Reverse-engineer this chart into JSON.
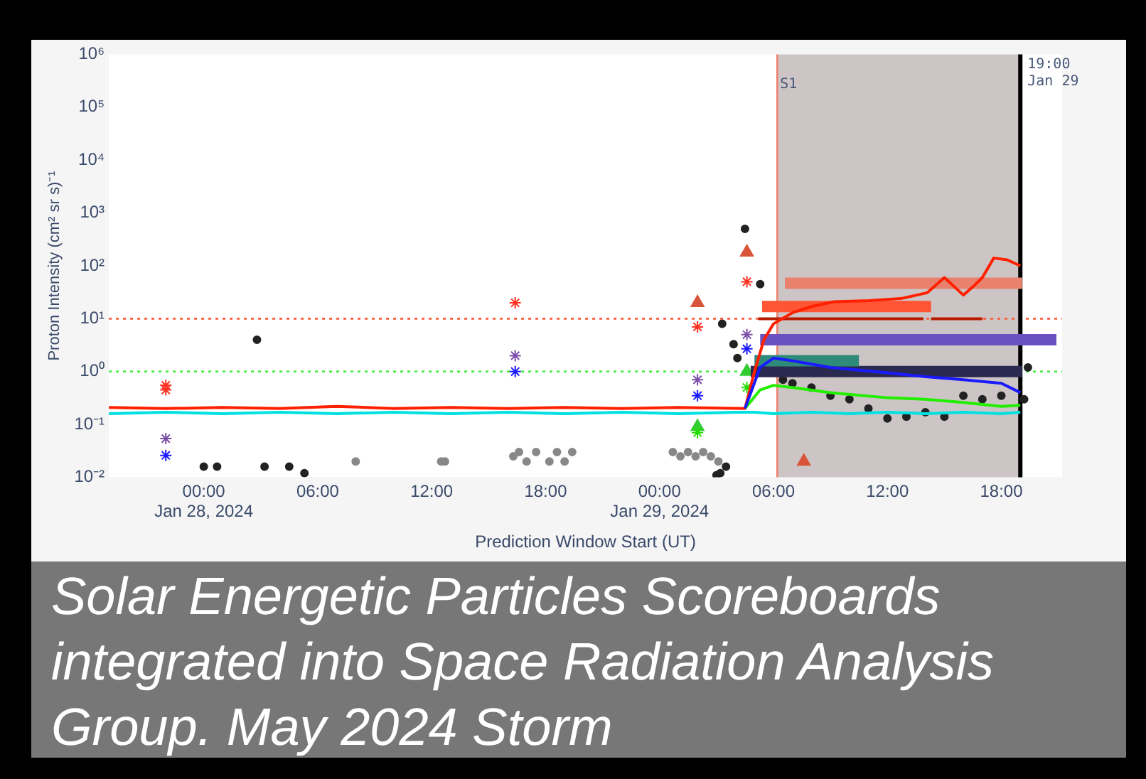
{
  "chart_data": {
    "type": "line",
    "title": "Solar Energetic Particles Scoreboards integrated into Space Radiation Analysis Group. May 2024 Storm",
    "xlabel": "Prediction Window Start (UT)",
    "ylabel": "Proton Intensity (cm² sr s)⁻¹",
    "log": "y",
    "grid": false,
    "legend": false,
    "xlim": [
      "2024-01-27T19:00",
      "2024-01-29T21:12"
    ],
    "xticks": [
      {
        "value": "2024-01-28T00:00",
        "label": "00:00\nJan 28, 2024"
      },
      {
        "value": "2024-01-28T06:00",
        "label": "06:00"
      },
      {
        "value": "2024-01-28T12:00",
        "label": "12:00"
      },
      {
        "value": "2024-01-28T18:00",
        "label": "18:00"
      },
      {
        "value": "2024-01-29T00:00",
        "label": "00:00\nJan 29, 2024"
      },
      {
        "value": "2024-01-29T06:00",
        "label": "06:00"
      },
      {
        "value": "2024-01-29T12:00",
        "label": "12:00"
      },
      {
        "value": "2024-01-29T18:00",
        "label": "18:00"
      }
    ],
    "ylim": [
      0.01,
      1000000
    ],
    "yticks": [
      {
        "value": 0.01,
        "label": "10⁻²"
      },
      {
        "value": 0.1,
        "label": "10⁻¹"
      },
      {
        "value": 1,
        "label": "10⁰"
      },
      {
        "value": 10,
        "label": "10¹"
      },
      {
        "value": 100,
        "label": "10²"
      },
      {
        "value": 1000,
        "label": "10³"
      },
      {
        "value": 10000,
        "label": "10⁴"
      },
      {
        "value": 100000,
        "label": "10⁵"
      },
      {
        "value": 1000000,
        "label": "10⁶"
      }
    ],
    "bands": [
      {
        "axis": "x",
        "from": "2024-01-29T06:12",
        "to": "2024-01-29T19:00",
        "color": "#cdc5c5"
      }
    ],
    "ref_lines": [
      {
        "axis": "y",
        "value": 10,
        "color": "#ff5a3c",
        "line_style": "dotted"
      },
      {
        "axis": "y",
        "value": 1,
        "color": "#33ee33",
        "line_style": "dotted"
      },
      {
        "axis": "x",
        "value": "2024-01-29T06:12",
        "label": "S1",
        "color": "#f08070",
        "line_style": "solid"
      },
      {
        "axis": "x",
        "value": "2024-01-29T19:00",
        "label": "19:00 Jan 29",
        "color": "#000000",
        "line_style": "solid"
      }
    ],
    "series": [
      {
        "color": "#00e0e0",
        "x": [
          "2024-01-27T19:00",
          "2024-01-27T22:00",
          "2024-01-28T01:00",
          "2024-01-28T04:00",
          "2024-01-28T07:00",
          "2024-01-28T10:00",
          "2024-01-28T13:00",
          "2024-01-28T16:00",
          "2024-01-28T19:00",
          "2024-01-28T22:00",
          "2024-01-29T01:00",
          "2024-01-29T04:00",
          "2024-01-29T05:00",
          "2024-01-29T06:00",
          "2024-01-29T08:00",
          "2024-01-29T10:00",
          "2024-01-29T12:00",
          "2024-01-29T14:00",
          "2024-01-29T16:00",
          "2024-01-29T18:00",
          "2024-01-29T19:00"
        ],
        "values": [
          0.16,
          0.17,
          0.16,
          0.17,
          0.16,
          0.17,
          0.16,
          0.17,
          0.16,
          0.17,
          0.16,
          0.17,
          0.17,
          0.16,
          0.17,
          0.16,
          0.17,
          0.16,
          0.17,
          0.16,
          0.17
        ]
      },
      {
        "color": "#1a1aff",
        "x": [
          "2024-01-29T04:30",
          "2024-01-29T05:18",
          "2024-01-29T06:00",
          "2024-01-29T07:00",
          "2024-01-29T09:00",
          "2024-01-29T12:00",
          "2024-01-29T14:00",
          "2024-01-29T16:00",
          "2024-01-29T18:00",
          "2024-01-29T19:00"
        ],
        "values": [
          0.2,
          1.2,
          1.8,
          1.6,
          1.2,
          0.95,
          0.8,
          0.7,
          0.6,
          0.4
        ]
      },
      {
        "color": "#22ee00",
        "x": [
          "2024-01-29T04:30",
          "2024-01-29T05:18",
          "2024-01-29T06:00",
          "2024-01-29T07:00",
          "2024-01-29T09:00",
          "2024-01-29T12:00",
          "2024-01-29T14:00",
          "2024-01-29T16:00",
          "2024-01-29T18:00",
          "2024-01-29T19:00"
        ],
        "values": [
          0.2,
          0.45,
          0.55,
          0.5,
          0.4,
          0.32,
          0.3,
          0.26,
          0.22,
          0.23
        ]
      },
      {
        "color": "#ff2000",
        "x": [
          "2024-01-27T19:00",
          "2024-01-27T22:00",
          "2024-01-28T01:00",
          "2024-01-28T04:00",
          "2024-01-28T07:00",
          "2024-01-28T10:00",
          "2024-01-28T13:00",
          "2024-01-28T16:00",
          "2024-01-28T19:00",
          "2024-01-28T22:00",
          "2024-01-29T01:00",
          "2024-01-29T04:30",
          "2024-01-29T05:00",
          "2024-01-29T05:30",
          "2024-01-29T06:00",
          "2024-01-29T07:00",
          "2024-01-29T08:00",
          "2024-01-29T09:12",
          "2024-01-29T11:00",
          "2024-01-29T12:42",
          "2024-01-29T14:06",
          "2024-01-29T15:00",
          "2024-01-29T16:00",
          "2024-01-29T16:30",
          "2024-01-29T17:00",
          "2024-01-29T17:36",
          "2024-01-29T18:18",
          "2024-01-29T19:00"
        ],
        "values": [
          0.21,
          0.2,
          0.21,
          0.2,
          0.22,
          0.2,
          0.21,
          0.2,
          0.21,
          0.2,
          0.21,
          0.2,
          1,
          4,
          8,
          13,
          17,
          21,
          22,
          24,
          31,
          60,
          28,
          40,
          60,
          140,
          130,
          100
        ]
      },
      {
        "color": "#e8826e",
        "x": [
          "2024-01-29T06:36",
          "2024-01-29T19:06"
        ],
        "values": [
          47,
          47
        ]
      },
      {
        "color": "#ff5535",
        "x": [
          "2024-01-29T05:24",
          "2024-01-29T14:18"
        ],
        "values": [
          17,
          17
        ]
      },
      {
        "color": "#b81c00",
        "x": [
          "2024-01-29T05:12",
          "2024-01-29T13:54",
          "2024-01-29T14:06",
          "2024-01-29T14:18",
          "2024-01-29T17:00"
        ],
        "values": [
          10,
          10,
          null,
          10,
          10
        ]
      },
      {
        "color": "#6a50c0",
        "x": [
          "2024-01-29T05:18",
          "2024-01-29T20:54"
        ],
        "values": [
          4,
          4
        ]
      },
      {
        "color": "#2e8b7a",
        "x": [
          "2024-01-29T05:00",
          "2024-01-29T10:30"
        ],
        "values": [
          1.6,
          1.6
        ]
      },
      {
        "color": "#2a2a50",
        "x": [
          "2024-01-29T04:48",
          "2024-01-29T19:06"
        ],
        "values": [
          1,
          1
        ]
      },
      {
        "type": "scatter",
        "marker": "circle",
        "color": "#888888",
        "x": [
          "2024-01-28T08:00",
          "2024-01-28T12:30",
          "2024-01-28T12:42",
          "2024-01-28T16:18",
          "2024-01-28T16:36",
          "2024-01-28T17:00",
          "2024-01-28T17:30",
          "2024-01-28T18:12",
          "2024-01-28T18:36",
          "2024-01-28T19:00",
          "2024-01-28T19:24",
          "2024-01-29T00:42",
          "2024-01-29T01:06",
          "2024-01-29T01:30",
          "2024-01-29T01:54",
          "2024-01-29T02:18",
          "2024-01-29T02:42",
          "2024-01-29T03:06"
        ],
        "values": [
          0.02,
          0.02,
          0.02,
          0.025,
          0.03,
          0.02,
          0.03,
          0.02,
          0.03,
          0.02,
          0.03,
          0.03,
          0.025,
          0.03,
          0.025,
          0.03,
          0.025,
          0.02
        ]
      },
      {
        "type": "scatter",
        "marker": "circle",
        "color": "#222222",
        "x": [
          "2024-01-28T00:00",
          "2024-01-28T00:42",
          "2024-01-28T02:48",
          "2024-01-28T03:12",
          "2024-01-28T04:30",
          "2024-01-28T05:18",
          "2024-01-29T03:00",
          "2024-01-29T03:18",
          "2024-01-29T03:30",
          "2024-01-29T03:12",
          "2024-01-29T03:54",
          "2024-01-29T04:06",
          "2024-01-29T04:30",
          "2024-01-29T05:18",
          "2024-01-29T06:30",
          "2024-01-29T07:00",
          "2024-01-29T08:00",
          "2024-01-29T09:00",
          "2024-01-29T10:00",
          "2024-01-29T11:00",
          "2024-01-29T12:00",
          "2024-01-29T13:00",
          "2024-01-29T14:00",
          "2024-01-29T15:00",
          "2024-01-29T16:00",
          "2024-01-29T17:00",
          "2024-01-29T18:00",
          "2024-01-29T19:24",
          "2024-01-29T19:12"
        ],
        "values": [
          0.016,
          0.016,
          4,
          0.016,
          0.016,
          0.012,
          0.011,
          8,
          0.016,
          0.012,
          3.3,
          1.8,
          500,
          45,
          0.7,
          0.6,
          0.5,
          0.35,
          0.3,
          0.2,
          0.13,
          0.14,
          0.17,
          0.14,
          0.35,
          0.3,
          0.35,
          1.2,
          0.3
        ]
      },
      {
        "type": "scatter",
        "marker": "cross",
        "color": "#ff3020",
        "x": [
          "2024-01-27T22:00",
          "2024-01-27T22:00",
          "2024-01-28T16:24",
          "2024-01-29T02:00",
          "2024-01-29T04:36"
        ],
        "values": [
          0.55,
          0.45,
          20,
          7,
          50
        ]
      },
      {
        "type": "scatter",
        "marker": "cross",
        "color": "#7b4fa8",
        "x": [
          "2024-01-27T22:00",
          "2024-01-28T16:24",
          "2024-01-29T02:00",
          "2024-01-29T04:36"
        ],
        "values": [
          0.054,
          2,
          0.7,
          5
        ]
      },
      {
        "type": "scatter",
        "marker": "cross",
        "color": "#1a1aff",
        "x": [
          "2024-01-27T22:00",
          "2024-01-28T16:24",
          "2024-01-29T02:00",
          "2024-01-29T04:36"
        ],
        "values": [
          0.026,
          1,
          0.35,
          2.7
        ]
      },
      {
        "type": "scatter",
        "marker": "cross",
        "color": "#22dd00",
        "x": [
          "2024-01-29T02:00",
          "2024-01-29T04:36"
        ],
        "values": [
          0.07,
          0.5
        ]
      },
      {
        "type": "scatter",
        "marker": "triangle",
        "color": "#d9553a",
        "x": [
          "2024-01-29T02:00",
          "2024-01-29T04:36",
          "2024-01-29T07:36"
        ],
        "values": [
          20,
          180,
          0.02
        ]
      },
      {
        "type": "scatter",
        "marker": "triangle",
        "color": "#33cc33",
        "x": [
          "2024-01-29T02:00",
          "2024-01-29T04:36"
        ],
        "values": [
          0.09,
          1
        ]
      }
    ]
  }
}
